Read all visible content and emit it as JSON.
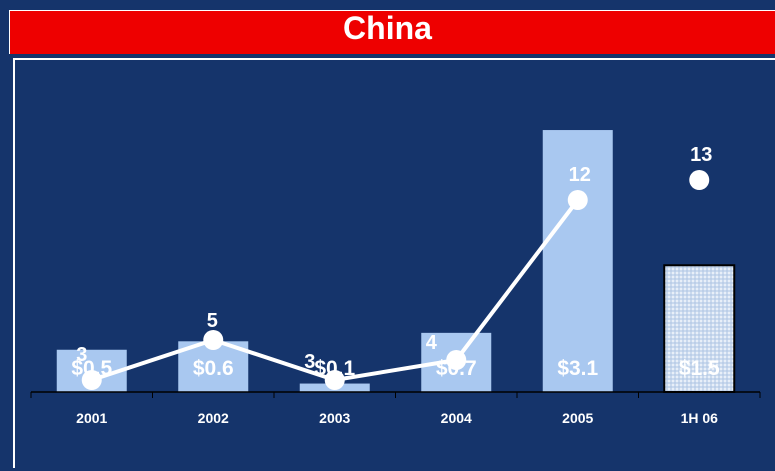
{
  "chart_data": {
    "type": "bar",
    "title": "China",
    "categories": [
      "2001",
      "2002",
      "2003",
      "2004",
      "2005",
      "1H 06"
    ],
    "bar_series": {
      "values": [
        0.5,
        0.6,
        0.1,
        0.7,
        3.1,
        1.5
      ],
      "labels": [
        "$0.5",
        "$0.6",
        "$0.1",
        "$0.7",
        "$3.1",
        "$1.5"
      ],
      "color": "#a9c8f0",
      "last_bar_style": "dotted-pattern"
    },
    "line_series": {
      "values": [
        3,
        5,
        3,
        4,
        12,
        13
      ],
      "labels": [
        "3",
        "5",
        "3",
        "4",
        "12",
        "13"
      ],
      "color": "#ffffff",
      "connected_points": 5
    },
    "grid": false
  },
  "colors": {
    "background": "#15346b",
    "title_bar": "#ee0000",
    "text": "#ffffff"
  }
}
